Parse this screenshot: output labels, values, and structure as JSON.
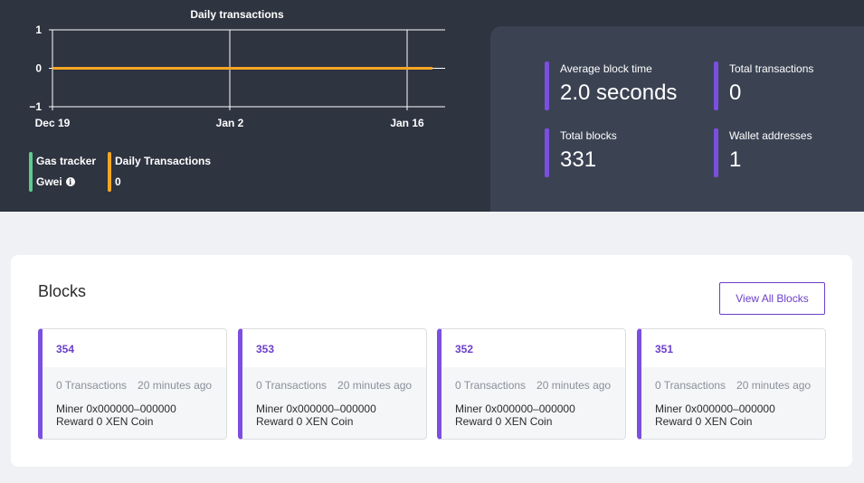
{
  "chart_data": {
    "type": "line",
    "title": "Daily transactions",
    "x_ticks": [
      "Dec 19",
      "Jan 2",
      "Jan 16"
    ],
    "y_ticks": [
      "1",
      "0",
      "−1"
    ],
    "ylim": [
      -1,
      1
    ],
    "series": [
      {
        "name": "Daily Transactions",
        "color": "#f5a623",
        "values": [
          0,
          0
        ]
      }
    ]
  },
  "legend": {
    "gas": {
      "label": "Gas tracker",
      "value": "Gwei",
      "color": "#5fc98e",
      "icon": "info-icon"
    },
    "daily": {
      "label": "Daily Transactions",
      "value": "0",
      "color": "#f5a623"
    }
  },
  "stats": {
    "avg_block_time": {
      "label": "Average block time",
      "value": "2.0 seconds"
    },
    "total_transactions": {
      "label": "Total transactions",
      "value": "0"
    },
    "total_blocks": {
      "label": "Total blocks",
      "value": "331"
    },
    "wallet_addresses": {
      "label": "Wallet addresses",
      "value": "1"
    }
  },
  "blocks_section": {
    "title": "Blocks",
    "view_all_label": "View All Blocks",
    "items": [
      {
        "number": "354",
        "transactions": "0 Transactions",
        "age": "20 minutes ago",
        "miner": "Miner 0x000000–000000",
        "reward": "Reward 0 XEN Coin"
      },
      {
        "number": "353",
        "transactions": "0 Transactions",
        "age": "20 minutes ago",
        "miner": "Miner 0x000000–000000",
        "reward": "Reward 0 XEN Coin"
      },
      {
        "number": "352",
        "transactions": "0 Transactions",
        "age": "20 minutes ago",
        "miner": "Miner 0x000000–000000",
        "reward": "Reward 0 XEN Coin"
      },
      {
        "number": "351",
        "transactions": "0 Transactions",
        "age": "20 minutes ago",
        "miner": "Miner 0x000000–000000",
        "reward": "Reward 0 XEN Coin"
      }
    ]
  },
  "colors": {
    "accent": "#7b4fe0",
    "link": "#6c3fc9",
    "dark_bg": "#2e3440",
    "stats_bg": "#3b4353"
  }
}
